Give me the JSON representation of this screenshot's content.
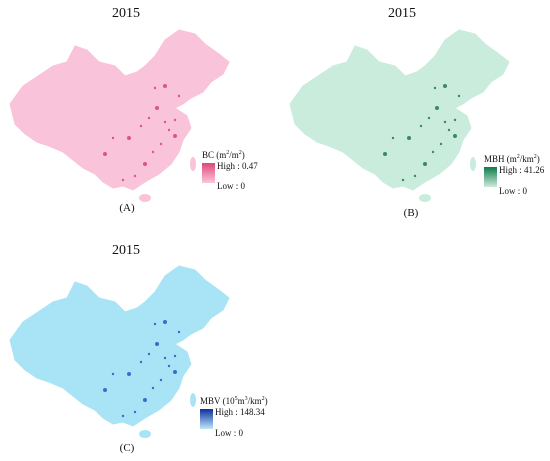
{
  "panels": [
    {
      "key": "A",
      "year": "2015",
      "tag": "(A)",
      "legend": {
        "var": "BC",
        "unit_pre": "(m",
        "unit_sup1": "2",
        "unit_mid": "/m",
        "unit_sup2": "2",
        "unit_post": ")",
        "high": "High : 0.47",
        "low": "Low : 0",
        "high_color": "#e0457b",
        "low_color": "#f9c8dc"
      },
      "map_color": "#f9c3d9",
      "hotspot_color": "#d63a6e"
    },
    {
      "key": "B",
      "year": "2015",
      "tag": "(B)",
      "legend": {
        "var": "MBH",
        "unit_pre": "(m",
        "unit_sup1": "2",
        "unit_mid": "/km",
        "unit_sup2": "2",
        "unit_post": ")",
        "high": "High : 41.26",
        "low": "Low : 0",
        "high_color": "#0f7a4a",
        "low_color": "#cdebdc"
      },
      "map_color": "#c9ecdc",
      "hotspot_color": "#1a6e45"
    },
    {
      "key": "C",
      "year": "2015",
      "tag": "(C)",
      "legend": {
        "var": "MBV",
        "unit_pre": "(10",
        "unit_sup1": "5",
        "unit_mid": "m",
        "unit_sup2": "3",
        "unit_post": "/km",
        "unit_sup3": "2",
        "unit_end": ")",
        "high": "High : 148.34",
        "low": "Low : 0",
        "high_color": "#0b2fa0",
        "low_color": "#bfe8f7"
      },
      "map_color": "#a8e4f5",
      "hotspot_color": "#1a4fc2"
    }
  ]
}
